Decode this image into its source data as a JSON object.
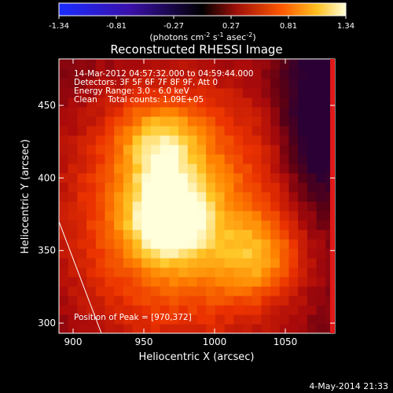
{
  "chart_data": {
    "type": "heatmap",
    "title": "Reconstructed RHESSI Image",
    "colorbar": {
      "ticks": [
        "-1.34",
        "-0.81",
        "-0.27",
        "0.27",
        "0.81",
        "1.34"
      ],
      "range": [
        -1.34,
        1.34
      ],
      "label_main": "(photons cm",
      "label_exp1": "-2",
      "label_mid": " s",
      "label_exp2": "-1",
      "label_end": " asec",
      "label_exp3": "-2",
      "label_close": ")"
    },
    "xlabel": "Heliocentric X (arcsec)",
    "ylabel": "Heliocentric Y (arcsec)",
    "xlim": [
      890,
      1085
    ],
    "ylim": [
      293,
      482
    ],
    "xticks": [
      900,
      950,
      1000,
      1050
    ],
    "yticks": [
      300,
      350,
      400,
      450
    ],
    "annotations": [
      "14-Mar-2012 04:57:32.000 to 04:59:44.000",
      "Detectors: 3F 5F 6F 7F 8F 9F, Att 0",
      "Energy Range: 3.0 - 6.0 keV",
      "Clean    Total counts: 1.09E+05"
    ],
    "peak_label": "Position of Peak = [970,372]",
    "peak": [
      970,
      372
    ],
    "sources": [
      {
        "x": 968,
        "y": 372,
        "amp": 1.34
      },
      {
        "x": 962,
        "y": 423,
        "amp": 0.9
      },
      {
        "x": 1030,
        "y": 345,
        "amp": 0.75
      }
    ],
    "limb_line": [
      [
        890,
        370
      ],
      [
        920,
        293
      ]
    ],
    "colormap": "red-temperature"
  },
  "timestamp": "4-May-2014 21:33"
}
